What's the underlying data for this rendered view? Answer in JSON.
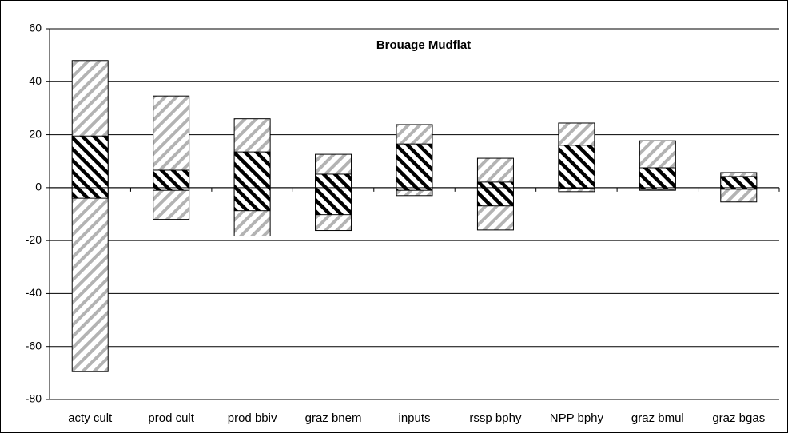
{
  "chart_data": {
    "type": "range",
    "title": "Brouage Mudflat",
    "categories": [
      "acty cult",
      "prod cult",
      "prod bbiv",
      "graz bnem",
      "inputs",
      "rssp bphy",
      "NPP bphy",
      "graz bmul",
      "graz bgas"
    ],
    "outer_low": [
      -69.5,
      -12,
      -18.3,
      -16.2,
      -3,
      -16,
      -1.5,
      -1,
      -5.4
    ],
    "inner_low": [
      -4,
      -1,
      -8.7,
      -10.2,
      -1,
      -6.9,
      -0.3,
      -0.6,
      -0.6
    ],
    "inner_high": [
      19.5,
      6.6,
      13.5,
      5.1,
      16.5,
      2.1,
      16,
      7.5,
      4.2
    ],
    "outer_high": [
      48,
      34.6,
      26,
      12.6,
      23.8,
      11.1,
      24.4,
      17.7,
      5.7
    ],
    "outer_color": "#b3b3b3",
    "inner_color": "#000000",
    "ylim": [
      -80,
      60
    ],
    "yticks": [
      -80,
      -60,
      -40,
      -20,
      0,
      20,
      40,
      60
    ],
    "grid": true
  }
}
